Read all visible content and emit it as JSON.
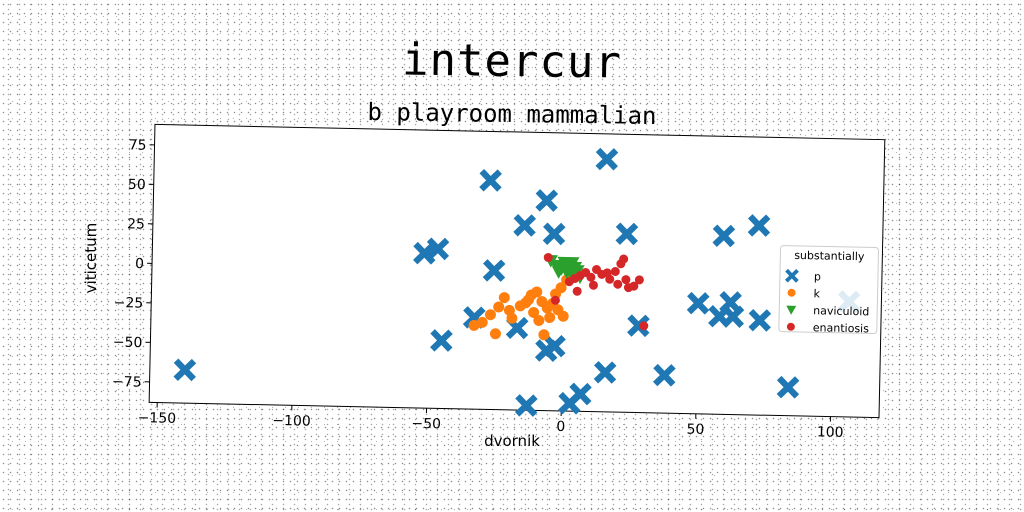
{
  "chart_data": {
    "type": "scatter",
    "title": "intercur",
    "subtitle": "b playroom mammalian",
    "xlabel": "dvornik",
    "ylabel": "viticetum",
    "xlim": [
      -153,
      118
    ],
    "ylim": [
      -88,
      88
    ],
    "xticks": [
      -150,
      -100,
      -50,
      0,
      50,
      100
    ],
    "yticks": [
      -75,
      -50,
      -25,
      0,
      25,
      50,
      75
    ],
    "legend": {
      "title": "substantially",
      "position": "right"
    },
    "series": [
      {
        "name": "p",
        "marker": "x",
        "color": "#1f77b4",
        "points": [
          [
            -140,
            -67
          ],
          [
            -52,
            10
          ],
          [
            -47,
            13
          ],
          [
            -45,
            -45
          ],
          [
            -33,
            -30
          ],
          [
            -28,
            57
          ],
          [
            -26,
            0
          ],
          [
            -17,
            -36
          ],
          [
            -15,
            29
          ],
          [
            -7,
            45
          ],
          [
            -4,
            24
          ],
          [
            -6,
            -50
          ],
          [
            -3,
            -47
          ],
          [
            15,
            72
          ],
          [
            23,
            25
          ],
          [
            16,
            -63
          ],
          [
            7,
            -77
          ],
          [
            3,
            -83
          ],
          [
            -13,
            -85
          ],
          [
            28,
            -33
          ],
          [
            38,
            -64
          ],
          [
            50,
            -18
          ],
          [
            58,
            -26
          ],
          [
            59,
            25
          ],
          [
            62,
            -17
          ],
          [
            63,
            -26
          ],
          [
            72,
            32
          ],
          [
            73,
            -28
          ],
          [
            84,
            -70
          ],
          [
            106,
            -15
          ]
        ]
      },
      {
        "name": "k",
        "marker": "o",
        "color": "#ff7f0e",
        "points": [
          [
            -33,
            -35
          ],
          [
            -30,
            -33
          ],
          [
            -27,
            -28
          ],
          [
            -25,
            -40
          ],
          [
            -24,
            -23
          ],
          [
            -22,
            -17
          ],
          [
            -20,
            -25
          ],
          [
            -19,
            -30
          ],
          [
            -16,
            -22
          ],
          [
            -14,
            -20
          ],
          [
            -12,
            -15
          ],
          [
            -10,
            -13
          ],
          [
            -8,
            -19
          ],
          [
            -6,
            -23
          ],
          [
            -4,
            -20
          ],
          [
            -2,
            -24
          ],
          [
            0,
            -28
          ],
          [
            -7,
            -40
          ],
          [
            -9,
            -31
          ],
          [
            -3,
            -14
          ],
          [
            -11,
            -26
          ],
          [
            -5,
            -29
          ],
          [
            -1,
            -10
          ],
          [
            -13,
            -18
          ],
          [
            1,
            -5
          ]
        ]
      },
      {
        "name": "naviculoid",
        "marker": "v",
        "color": "#2ca02c",
        "points": [
          [
            -5,
            7
          ],
          [
            -3,
            4
          ],
          [
            -1,
            2
          ],
          [
            0,
            6
          ],
          [
            1,
            0
          ],
          [
            2,
            4
          ],
          [
            3,
            -2
          ],
          [
            4,
            3
          ],
          [
            5,
            1
          ],
          [
            6,
            -3
          ],
          [
            -2,
            0
          ],
          [
            3,
            6
          ]
        ]
      },
      {
        "name": "enantiosis",
        "marker": "o",
        "color": "#d62728",
        "points": [
          [
            -6,
            9
          ],
          [
            -3,
            -18
          ],
          [
            2,
            -6
          ],
          [
            4,
            -4
          ],
          [
            6,
            -2
          ],
          [
            8,
            0
          ],
          [
            10,
            -3
          ],
          [
            12,
            2
          ],
          [
            14,
            -1
          ],
          [
            16,
            0
          ],
          [
            17,
            -4
          ],
          [
            19,
            1
          ],
          [
            20,
            -7
          ],
          [
            21,
            6
          ],
          [
            22,
            9
          ],
          [
            23,
            -4
          ],
          [
            24,
            -9
          ],
          [
            26,
            -8
          ],
          [
            28,
            -4
          ],
          [
            30,
            -33
          ],
          [
            5,
            -12
          ],
          [
            11,
            -8
          ]
        ]
      }
    ]
  }
}
